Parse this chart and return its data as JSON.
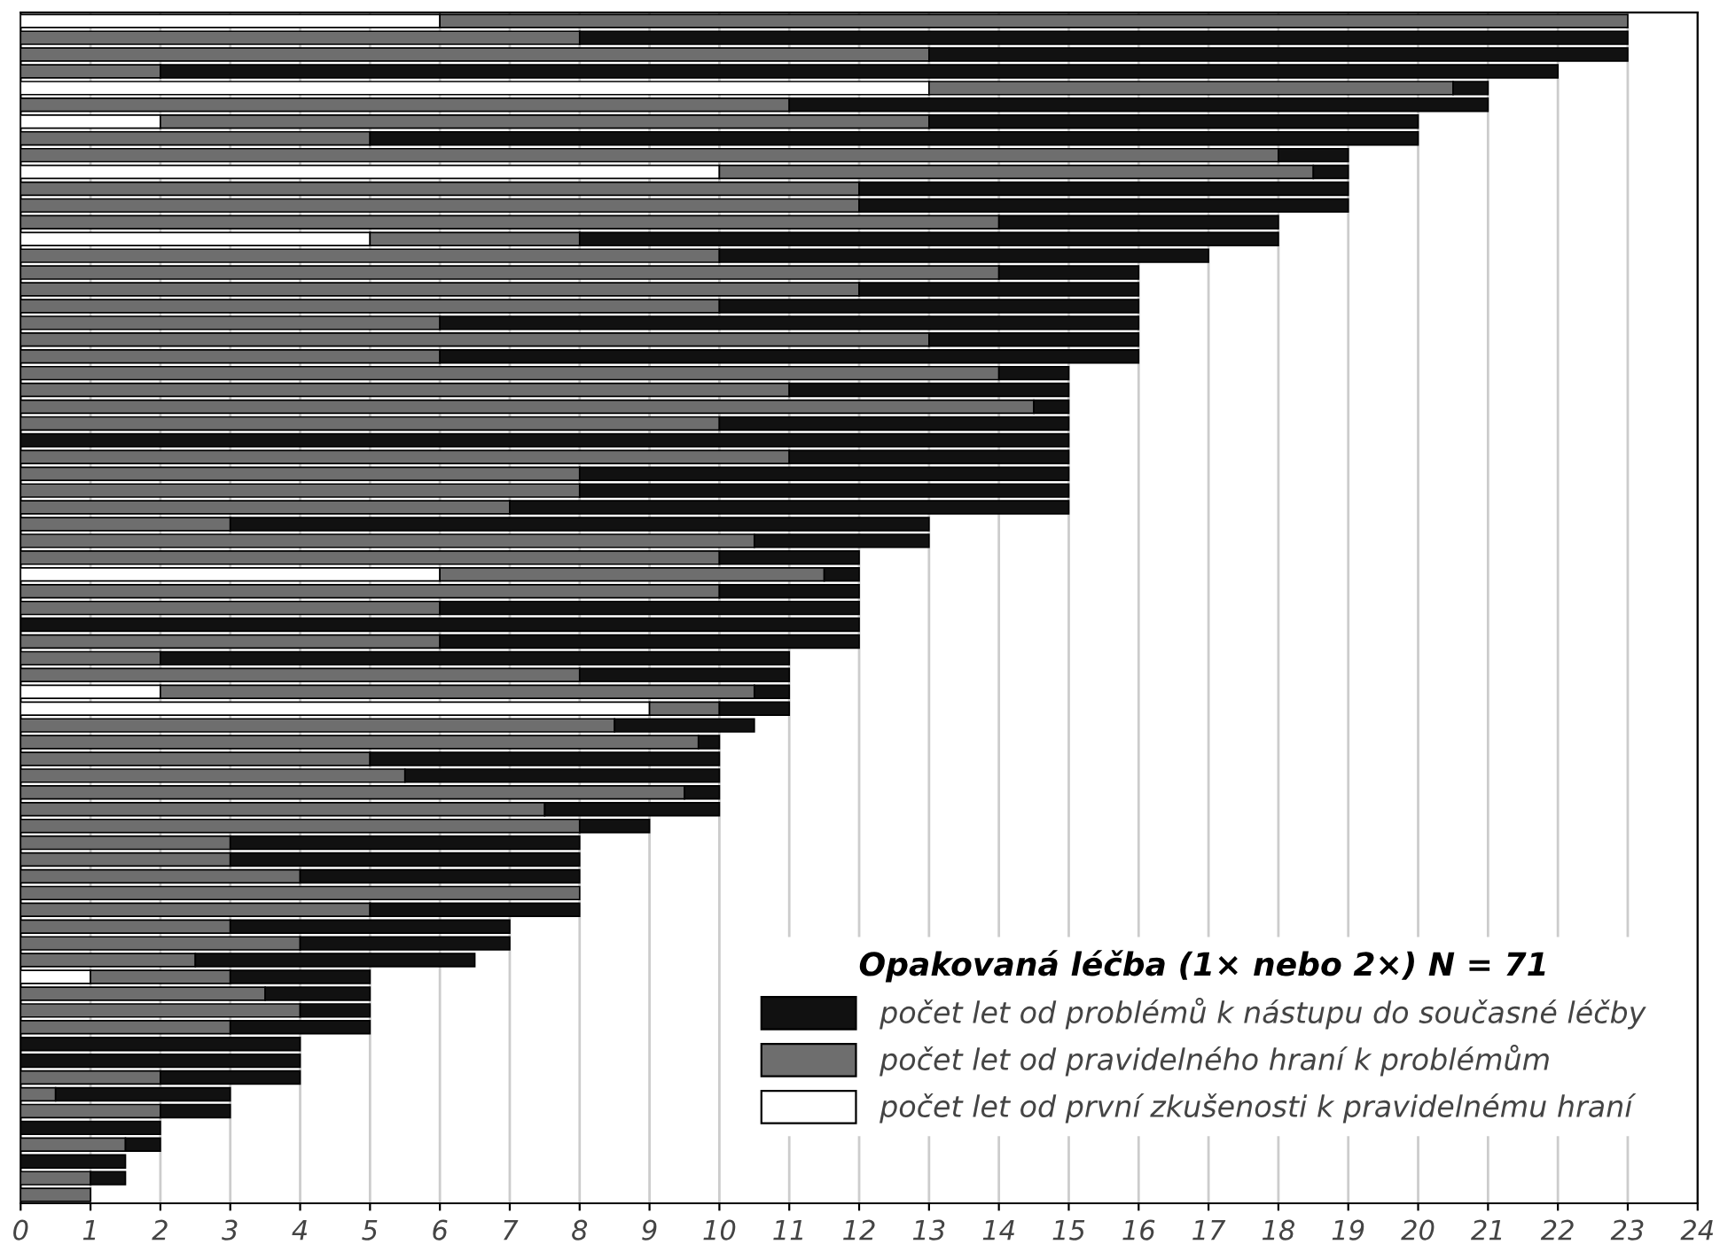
{
  "chart_data": {
    "type": "bar",
    "orientation": "horizontal",
    "stacked": true,
    "categories": [
      null,
      null,
      null,
      null,
      null,
      null,
      null,
      null,
      null,
      null,
      null,
      null,
      null,
      null,
      null,
      null,
      null,
      null,
      null,
      null,
      null,
      null,
      null,
      null,
      null,
      null,
      null,
      null,
      null,
      null,
      null,
      null,
      null,
      null,
      null,
      null,
      null,
      null,
      null,
      null,
      null,
      null,
      null,
      null,
      null,
      null,
      null,
      null,
      null,
      null,
      null,
      null,
      null,
      null,
      null,
      null,
      null,
      null,
      null,
      null,
      null,
      null,
      null,
      null,
      null,
      null,
      null,
      null,
      null,
      null,
      null
    ],
    "legend_title": "Opakovaná léčba (1× nebo 2×) N = 71",
    "series": [
      {
        "name": "počet let od první zkušenosti k pravidelnému hraní",
        "color": "#ffffff",
        "values": [
          6,
          null,
          null,
          null,
          13,
          null,
          2,
          null,
          null,
          10,
          null,
          null,
          null,
          5,
          null,
          null,
          null,
          null,
          null,
          null,
          null,
          null,
          null,
          null,
          null,
          null,
          null,
          null,
          null,
          null,
          null,
          null,
          null,
          6,
          null,
          null,
          null,
          null,
          null,
          null,
          2,
          9,
          null,
          null,
          null,
          null,
          null,
          null,
          null,
          null,
          null,
          null,
          null,
          null,
          null,
          null,
          null,
          1,
          null,
          null,
          null,
          null,
          null,
          null,
          null,
          null,
          null,
          null,
          null,
          null,
          null
        ]
      },
      {
        "name": "počet let od pravidelného hraní k problémům",
        "color": "#6e6e6e",
        "values": [
          17,
          8,
          13,
          2,
          7.5,
          11,
          11,
          5,
          18,
          8.5,
          12,
          12,
          14,
          3,
          10,
          14,
          12,
          10,
          6,
          13,
          6,
          14,
          11,
          14.5,
          10,
          null,
          11,
          8,
          8,
          7,
          3,
          10.5,
          10,
          5.5,
          10,
          6,
          null,
          6,
          2,
          8,
          8.5,
          1,
          8.5,
          9.7,
          5,
          5.5,
          9.5,
          7.5,
          8,
          3,
          3,
          4,
          8,
          5,
          3,
          4,
          2.5,
          2,
          3.5,
          4,
          3,
          null,
          null,
          2,
          0.5,
          2,
          null,
          1.5,
          null,
          1,
          1
        ]
      },
      {
        "name": "počet let od problémů k nástupu do současné léčby",
        "color": "#111111",
        "values": [
          null,
          15,
          10,
          20,
          0.5,
          10,
          7,
          15,
          1,
          0.5,
          7,
          7,
          4,
          10,
          7,
          2,
          4,
          6,
          10,
          3,
          10,
          1,
          4,
          0.5,
          5,
          15,
          4,
          7,
          7,
          8,
          10,
          2.5,
          2,
          0.5,
          2,
          6,
          12,
          6,
          9,
          3,
          0.5,
          1,
          2,
          0.3,
          5,
          4.5,
          0.5,
          2.5,
          1,
          5,
          5,
          4,
          null,
          3,
          4,
          3,
          4,
          2,
          1.5,
          1,
          2,
          4,
          4,
          2,
          2.5,
          1,
          2,
          0.5,
          1.5,
          0.5,
          null
        ]
      }
    ],
    "xlim": [
      0,
      24
    ],
    "xticks": [
      0,
      1,
      2,
      3,
      4,
      5,
      6,
      7,
      8,
      9,
      10,
      11,
      12,
      13,
      14,
      15,
      16,
      17,
      18,
      19,
      20,
      21,
      22,
      23,
      24
    ],
    "grid": "x",
    "legend": "bottom right",
    "tick_labels": "x"
  }
}
